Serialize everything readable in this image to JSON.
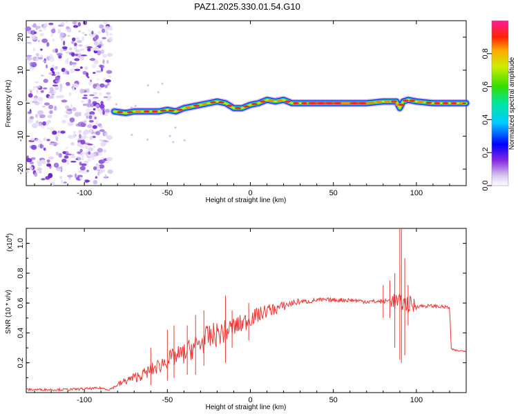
{
  "title": "PAZ1.2025.330.01.54.G10",
  "chart_data": [
    {
      "type": "heatmap",
      "name": "spectrogram",
      "xlabel": "Height of straight line (km)",
      "ylabel": "Frequency (Hz)",
      "xlim": [
        -135,
        130
      ],
      "ylim": [
        -25,
        25
      ],
      "xticks": [
        -100,
        -50,
        0,
        50,
        100
      ],
      "yticks": [
        -20,
        -10,
        0,
        10,
        20
      ],
      "noise_region_km": [
        -135,
        -83
      ],
      "ridge": {
        "x": [
          -82,
          -75,
          -70,
          -65,
          -60,
          -55,
          -50,
          -45,
          -40,
          -35,
          -30,
          -25,
          -20,
          -15,
          -10,
          -5,
          0,
          5,
          10,
          15,
          20,
          25,
          30,
          35,
          40,
          50,
          60,
          70,
          80,
          85,
          88,
          90,
          92,
          95,
          100,
          110,
          120,
          130
        ],
        "freq_hz": [
          -2.5,
          -3,
          -2.5,
          -2.5,
          -2.5,
          -2.5,
          -2,
          -2.5,
          -1.5,
          -1,
          -0.5,
          0,
          0.5,
          0,
          -1.5,
          -1.5,
          -0.5,
          0,
          1,
          0.5,
          1,
          0,
          0,
          0,
          0,
          0,
          0,
          0,
          0.5,
          0.5,
          0.5,
          -1.5,
          0.5,
          1,
          0.5,
          0,
          0,
          0
        ]
      },
      "colorbar": {
        "label": "Normalized spectral amplitude",
        "range": [
          0,
          1
        ],
        "ticks": [
          "0.0",
          "0.2",
          "0.4",
          "0.6",
          "0.8"
        ]
      }
    },
    {
      "type": "line",
      "name": "snr",
      "xlabel": "Height of straight line (km)",
      "ylabel": "SNR (10 * v/v)",
      "scale_label": "(x10",
      "scale_exp": "4",
      "scale_close": ")",
      "xlim": [
        -135,
        130
      ],
      "ylim": [
        0,
        1.1
      ],
      "xticks": [
        -100,
        -50,
        0,
        50,
        100
      ],
      "yticks": [
        "0.2",
        "0.4",
        "0.6",
        "0.8",
        "1.0"
      ],
      "series": [
        {
          "name": "SNR",
          "color": "#ee3333",
          "x": [
            -135,
            -110,
            -90,
            -85,
            -80,
            -75,
            -70,
            -65,
            -60,
            -55,
            -50,
            -45,
            -40,
            -35,
            -30,
            -25,
            -20,
            -15,
            -10,
            -5,
            0,
            5,
            10,
            15,
            20,
            25,
            30,
            35,
            40,
            50,
            60,
            70,
            80,
            85,
            90,
            92,
            95,
            100,
            110,
            120,
            121,
            125,
            130
          ],
          "values": [
            0.02,
            0.02,
            0.03,
            0.02,
            0.05,
            0.08,
            0.1,
            0.12,
            0.15,
            0.18,
            0.22,
            0.24,
            0.26,
            0.3,
            0.33,
            0.37,
            0.39,
            0.41,
            0.44,
            0.46,
            0.5,
            0.52,
            0.55,
            0.56,
            0.58,
            0.6,
            0.61,
            0.61,
            0.62,
            0.62,
            0.62,
            0.61,
            0.61,
            0.62,
            0.6,
            0.6,
            0.59,
            0.58,
            0.58,
            0.57,
            0.29,
            0.28,
            0.28
          ]
        }
      ],
      "spikes": [
        {
          "x": -60,
          "lo": 0.05,
          "hi": 0.3
        },
        {
          "x": -50,
          "lo": 0.08,
          "hi": 0.42
        },
        {
          "x": -46,
          "lo": 0.1,
          "hi": 0.45
        },
        {
          "x": -38,
          "lo": 0.12,
          "hi": 0.45
        },
        {
          "x": -33,
          "lo": 0.12,
          "hi": 0.52
        },
        {
          "x": -28,
          "lo": 0.18,
          "hi": 0.55
        },
        {
          "x": -15,
          "lo": 0.2,
          "hi": 0.65
        },
        {
          "x": -11,
          "lo": 0.3,
          "hi": 0.55
        },
        {
          "x": -1,
          "lo": 0.35,
          "hi": 0.6
        },
        {
          "x": 80,
          "lo": 0.5,
          "hi": 0.72
        },
        {
          "x": 84,
          "lo": 0.5,
          "hi": 0.75
        },
        {
          "x": 87,
          "lo": 0.3,
          "hi": 0.8
        },
        {
          "x": 90,
          "lo": 0.22,
          "hi": 1.1
        },
        {
          "x": 91,
          "lo": 0.2,
          "hi": 1.1
        },
        {
          "x": 93,
          "lo": 0.25,
          "hi": 0.9
        },
        {
          "x": 95,
          "lo": 0.45,
          "hi": 0.72
        }
      ]
    }
  ]
}
